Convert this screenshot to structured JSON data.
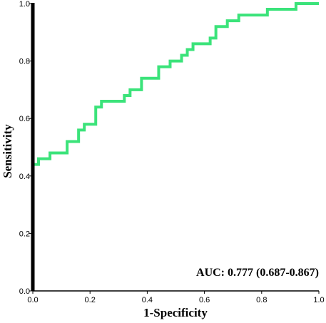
{
  "chart_data": {
    "type": "line",
    "xlabel": "1-Specificity",
    "ylabel": "Sensitivity",
    "xlim": [
      0,
      1
    ],
    "ylim": [
      0,
      1
    ],
    "x_ticks": [
      "0.0",
      "0.2",
      "0.4",
      "0.6",
      "0.8",
      "1.0"
    ],
    "y_ticks": [
      "0.0",
      "0.2",
      "0.4",
      "0.6",
      "0.8",
      "1.0"
    ],
    "annotation": "AUC: 0.777 (0.687-0.867)",
    "grid": false,
    "series": [
      {
        "color": "#3be37a",
        "points": [
          [
            0.0,
            0.0
          ],
          [
            0.0,
            0.44
          ],
          [
            0.02,
            0.44
          ],
          [
            0.02,
            0.46
          ],
          [
            0.06,
            0.46
          ],
          [
            0.06,
            0.48
          ],
          [
            0.12,
            0.48
          ],
          [
            0.12,
            0.52
          ],
          [
            0.16,
            0.52
          ],
          [
            0.16,
            0.56
          ],
          [
            0.18,
            0.56
          ],
          [
            0.18,
            0.58
          ],
          [
            0.22,
            0.58
          ],
          [
            0.22,
            0.64
          ],
          [
            0.24,
            0.64
          ],
          [
            0.24,
            0.66
          ],
          [
            0.32,
            0.66
          ],
          [
            0.32,
            0.68
          ],
          [
            0.34,
            0.68
          ],
          [
            0.34,
            0.7
          ],
          [
            0.38,
            0.7
          ],
          [
            0.38,
            0.74
          ],
          [
            0.44,
            0.74
          ],
          [
            0.44,
            0.78
          ],
          [
            0.48,
            0.78
          ],
          [
            0.48,
            0.8
          ],
          [
            0.52,
            0.8
          ],
          [
            0.52,
            0.82
          ],
          [
            0.54,
            0.82
          ],
          [
            0.54,
            0.84
          ],
          [
            0.56,
            0.84
          ],
          [
            0.56,
            0.86
          ],
          [
            0.62,
            0.86
          ],
          [
            0.62,
            0.88
          ],
          [
            0.64,
            0.88
          ],
          [
            0.64,
            0.92
          ],
          [
            0.68,
            0.92
          ],
          [
            0.68,
            0.94
          ],
          [
            0.72,
            0.94
          ],
          [
            0.72,
            0.96
          ],
          [
            0.82,
            0.96
          ],
          [
            0.82,
            0.98
          ],
          [
            0.92,
            0.98
          ],
          [
            0.92,
            1.0
          ],
          [
            1.0,
            1.0
          ]
        ]
      }
    ]
  }
}
